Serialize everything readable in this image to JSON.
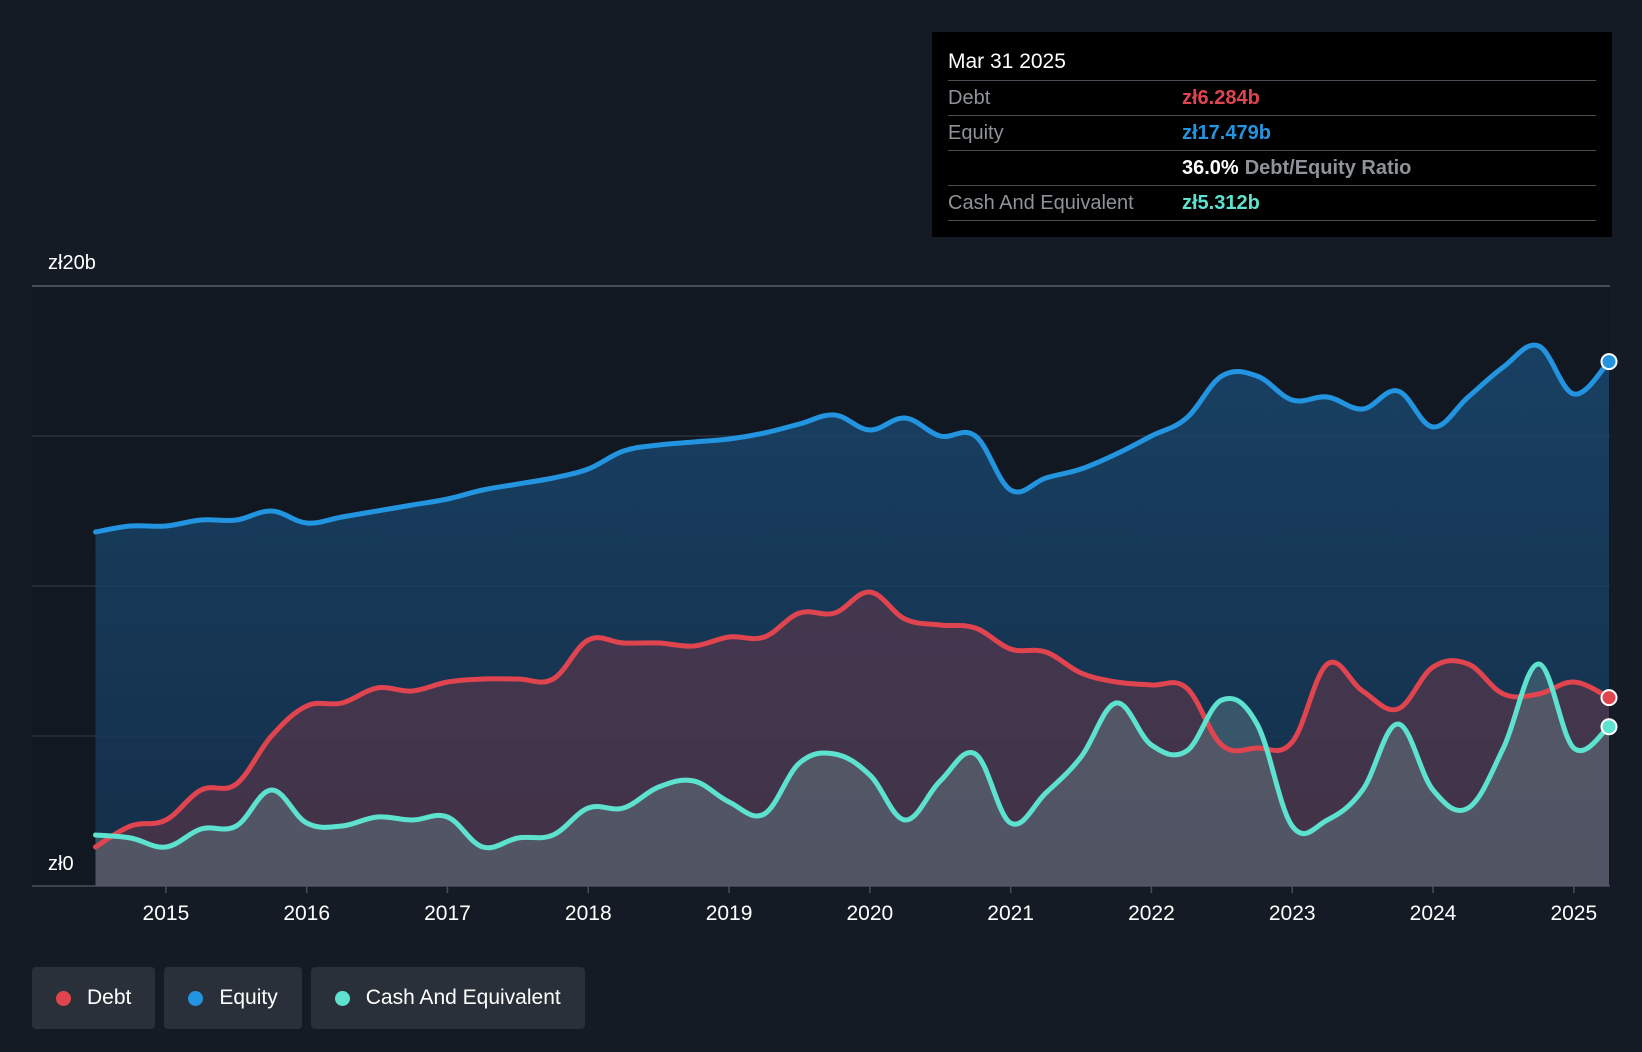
{
  "tooltip": {
    "date": "Mar 31 2025",
    "debt_label": "Debt",
    "debt_value": "zł6.284b",
    "equity_label": "Equity",
    "equity_value": "zł17.479b",
    "ratio_value": "36.0%",
    "ratio_label": "Debt/Equity Ratio",
    "cash_label": "Cash And Equivalent",
    "cash_value": "zł5.312b"
  },
  "legend": [
    {
      "label": "Debt",
      "color": "#e0444f"
    },
    {
      "label": "Equity",
      "color": "#2394e0"
    },
    {
      "label": "Cash And Equivalent",
      "color": "#5de2cf"
    }
  ],
  "colors": {
    "debt": "#e0444f",
    "equity": "#2394e0",
    "cash": "#5de2cf",
    "background": "#151b24"
  },
  "chart_data": {
    "type": "area",
    "ylim": [
      0,
      20
    ],
    "y_tick_labels": [
      "zł0",
      "zł20b"
    ],
    "xlim": [
      2014.5,
      2025.25
    ],
    "x_ticks": [
      2015,
      2016,
      2017,
      2018,
      2019,
      2020,
      2021,
      2022,
      2023,
      2024,
      2025
    ],
    "x_tick_labels": [
      "2015",
      "2016",
      "2017",
      "2018",
      "2019",
      "2020",
      "2021",
      "2022",
      "2023",
      "2024",
      "2025"
    ],
    "grid": true,
    "legend_position": "bottom-left",
    "series": [
      {
        "name": "Equity",
        "points": [
          [
            2014.5,
            11.8
          ],
          [
            2014.75,
            12.0
          ],
          [
            2015.0,
            12.0
          ],
          [
            2015.25,
            12.2
          ],
          [
            2015.5,
            12.2
          ],
          [
            2015.75,
            12.5
          ],
          [
            2016.0,
            12.1
          ],
          [
            2016.25,
            12.3
          ],
          [
            2016.5,
            12.5
          ],
          [
            2016.75,
            12.7
          ],
          [
            2017.0,
            12.9
          ],
          [
            2017.25,
            13.2
          ],
          [
            2017.5,
            13.4
          ],
          [
            2017.75,
            13.6
          ],
          [
            2018.0,
            13.9
          ],
          [
            2018.25,
            14.5
          ],
          [
            2018.5,
            14.7
          ],
          [
            2018.75,
            14.8
          ],
          [
            2019.0,
            14.9
          ],
          [
            2019.25,
            15.1
          ],
          [
            2019.5,
            15.4
          ],
          [
            2019.75,
            15.7
          ],
          [
            2020.0,
            15.2
          ],
          [
            2020.25,
            15.6
          ],
          [
            2020.5,
            15.0
          ],
          [
            2020.75,
            15.0
          ],
          [
            2021.0,
            13.2
          ],
          [
            2021.25,
            13.6
          ],
          [
            2021.5,
            13.9
          ],
          [
            2021.75,
            14.4
          ],
          [
            2022.0,
            15.0
          ],
          [
            2022.25,
            15.6
          ],
          [
            2022.5,
            17.0
          ],
          [
            2022.75,
            17.0
          ],
          [
            2023.0,
            16.2
          ],
          [
            2023.25,
            16.3
          ],
          [
            2023.5,
            15.9
          ],
          [
            2023.75,
            16.5
          ],
          [
            2024.0,
            15.3
          ],
          [
            2024.25,
            16.3
          ],
          [
            2024.5,
            17.3
          ],
          [
            2024.75,
            18.0
          ],
          [
            2025.0,
            16.4
          ],
          [
            2025.25,
            17.48
          ]
        ]
      },
      {
        "name": "Debt",
        "points": [
          [
            2014.5,
            1.3
          ],
          [
            2014.75,
            2.0
          ],
          [
            2015.0,
            2.2
          ],
          [
            2015.25,
            3.2
          ],
          [
            2015.5,
            3.4
          ],
          [
            2015.75,
            5.0
          ],
          [
            2016.0,
            6.0
          ],
          [
            2016.25,
            6.1
          ],
          [
            2016.5,
            6.6
          ],
          [
            2016.75,
            6.5
          ],
          [
            2017.0,
            6.8
          ],
          [
            2017.25,
            6.9
          ],
          [
            2017.5,
            6.9
          ],
          [
            2017.75,
            6.9
          ],
          [
            2018.0,
            8.2
          ],
          [
            2018.25,
            8.1
          ],
          [
            2018.5,
            8.1
          ],
          [
            2018.75,
            8.0
          ],
          [
            2019.0,
            8.3
          ],
          [
            2019.25,
            8.3
          ],
          [
            2019.5,
            9.1
          ],
          [
            2019.75,
            9.1
          ],
          [
            2020.0,
            9.8
          ],
          [
            2020.25,
            8.9
          ],
          [
            2020.5,
            8.7
          ],
          [
            2020.75,
            8.6
          ],
          [
            2021.0,
            7.9
          ],
          [
            2021.25,
            7.8
          ],
          [
            2021.5,
            7.1
          ],
          [
            2021.75,
            6.8
          ],
          [
            2022.0,
            6.7
          ],
          [
            2022.25,
            6.6
          ],
          [
            2022.5,
            4.7
          ],
          [
            2022.75,
            4.6
          ],
          [
            2023.0,
            4.8
          ],
          [
            2023.25,
            7.4
          ],
          [
            2023.5,
            6.5
          ],
          [
            2023.75,
            5.9
          ],
          [
            2024.0,
            7.3
          ],
          [
            2024.25,
            7.4
          ],
          [
            2024.5,
            6.4
          ],
          [
            2024.75,
            6.4
          ],
          [
            2025.0,
            6.8
          ],
          [
            2025.25,
            6.28
          ]
        ]
      },
      {
        "name": "Cash And Equivalent",
        "points": [
          [
            2014.5,
            1.7
          ],
          [
            2014.75,
            1.6
          ],
          [
            2015.0,
            1.3
          ],
          [
            2015.25,
            1.9
          ],
          [
            2015.5,
            2.0
          ],
          [
            2015.75,
            3.2
          ],
          [
            2016.0,
            2.1
          ],
          [
            2016.25,
            2.0
          ],
          [
            2016.5,
            2.3
          ],
          [
            2016.75,
            2.2
          ],
          [
            2017.0,
            2.3
          ],
          [
            2017.25,
            1.3
          ],
          [
            2017.5,
            1.6
          ],
          [
            2017.75,
            1.7
          ],
          [
            2018.0,
            2.6
          ],
          [
            2018.25,
            2.6
          ],
          [
            2018.5,
            3.3
          ],
          [
            2018.75,
            3.5
          ],
          [
            2019.0,
            2.8
          ],
          [
            2019.25,
            2.4
          ],
          [
            2019.5,
            4.1
          ],
          [
            2019.75,
            4.4
          ],
          [
            2020.0,
            3.7
          ],
          [
            2020.25,
            2.2
          ],
          [
            2020.5,
            3.5
          ],
          [
            2020.75,
            4.4
          ],
          [
            2021.0,
            2.1
          ],
          [
            2021.25,
            3.1
          ],
          [
            2021.5,
            4.3
          ],
          [
            2021.75,
            6.1
          ],
          [
            2022.0,
            4.7
          ],
          [
            2022.25,
            4.5
          ],
          [
            2022.5,
            6.2
          ],
          [
            2022.75,
            5.4
          ],
          [
            2023.0,
            2.0
          ],
          [
            2023.25,
            2.2
          ],
          [
            2023.5,
            3.2
          ],
          [
            2023.75,
            5.4
          ],
          [
            2024.0,
            3.2
          ],
          [
            2024.25,
            2.6
          ],
          [
            2024.5,
            4.6
          ],
          [
            2024.75,
            7.4
          ],
          [
            2025.0,
            4.6
          ],
          [
            2025.25,
            5.31
          ]
        ]
      }
    ]
  }
}
